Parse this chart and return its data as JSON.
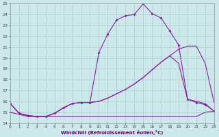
{
  "xlabel": "Windchill (Refroidissement éolien,°C)",
  "bg_color": "#cce8ea",
  "grid_color": "#aaccd0",
  "line_color": "#882299",
  "xmin": 0,
  "xmax": 23,
  "ymin": 14,
  "ymax": 25,
  "hours": [
    0,
    1,
    2,
    3,
    4,
    5,
    6,
    7,
    8,
    9,
    10,
    11,
    12,
    13,
    14,
    15,
    16,
    17,
    18,
    19,
    20,
    21,
    22,
    23
  ],
  "windchill": [
    15.8,
    14.9,
    14.7,
    14.6,
    14.6,
    14.9,
    15.4,
    15.8,
    15.9,
    15.9,
    20.5,
    22.2,
    23.5,
    23.9,
    24.0,
    25.0,
    24.1,
    23.7,
    22.5,
    21.2,
    16.2,
    15.9,
    15.7,
    15.1
  ],
  "temp": [
    15.8,
    14.9,
    14.7,
    14.6,
    14.6,
    14.9,
    15.4,
    15.8,
    15.9,
    15.9,
    16.0,
    16.3,
    16.7,
    17.1,
    17.6,
    18.2,
    18.9,
    19.6,
    20.2,
    20.8,
    21.1,
    21.1,
    19.5,
    15.9
  ],
  "feels": [
    15.8,
    14.9,
    14.7,
    14.6,
    14.6,
    14.9,
    15.4,
    15.8,
    15.9,
    15.9,
    16.0,
    16.3,
    16.7,
    17.1,
    17.6,
    18.2,
    18.9,
    19.6,
    20.2,
    19.5,
    16.2,
    16.0,
    15.8,
    15.1
  ],
  "flat": [
    15.0,
    14.8,
    14.6,
    14.6,
    14.6,
    14.6,
    14.6,
    14.6,
    14.6,
    14.6,
    14.6,
    14.6,
    14.6,
    14.6,
    14.6,
    14.6,
    14.6,
    14.6,
    14.6,
    14.6,
    14.6,
    14.6,
    15.0,
    15.1
  ]
}
